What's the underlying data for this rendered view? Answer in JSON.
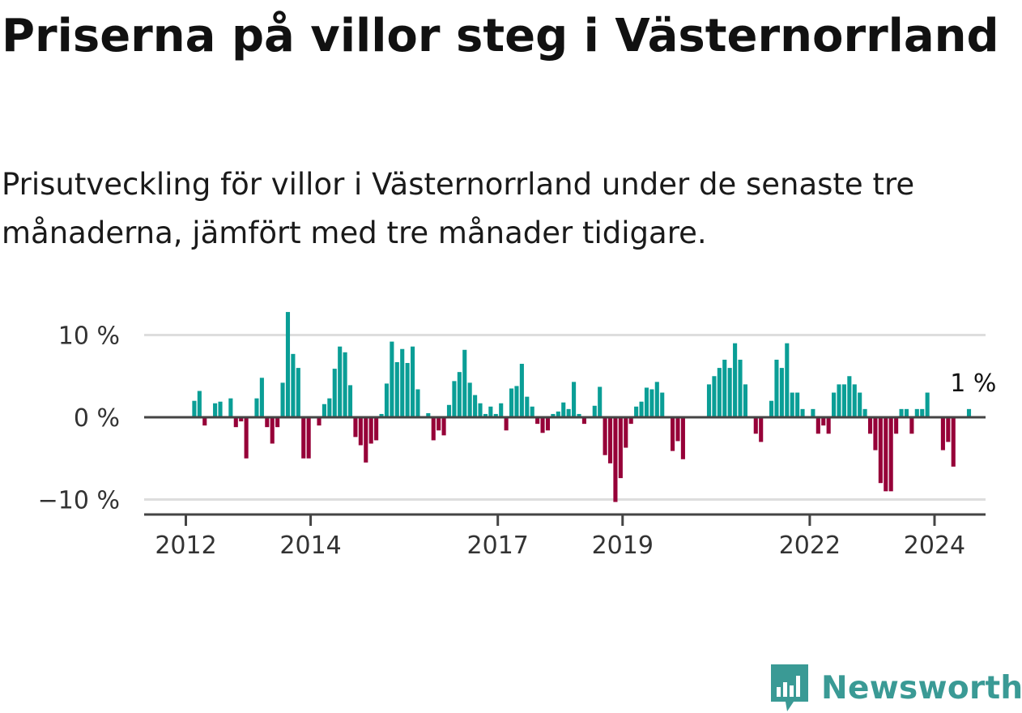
{
  "header": {
    "title": "Priserna på villor steg i Västernorrland",
    "subtitle": "Prisutveckling för villor i Västernorrland under de senaste tre månaderna, jämfört med tre månader tidigare."
  },
  "brand": {
    "name": "Newsworthy",
    "icon": "newsworthy-logo-icon",
    "color": "#3a9a95"
  },
  "chart_data": {
    "type": "bar",
    "title": "Priserna på villor steg i Västernorrland",
    "subtitle": "Prisutveckling för villor i Västernorrland under de senaste tre månaderna, jämfört med tre månader tidigare.",
    "xlabel": "",
    "ylabel": "",
    "ylim": [
      -11.5,
      13.5
    ],
    "y_ticks": [
      {
        "value": 10,
        "label": "10 %"
      },
      {
        "value": 0,
        "label": "0 %"
      },
      {
        "value": -10,
        "label": "−10 %"
      }
    ],
    "x_ticks": [
      {
        "value": "2012-01",
        "label": "2012"
      },
      {
        "value": "2014-01",
        "label": "2014"
      },
      {
        "value": "2017-01",
        "label": "2017"
      },
      {
        "value": "2019-01",
        "label": "2019"
      },
      {
        "value": "2022-01",
        "label": "2022"
      },
      {
        "value": "2024-01",
        "label": "2024"
      }
    ],
    "grid": true,
    "colors": {
      "positive": "#0a9e96",
      "negative": "#960038",
      "grid": "#dddddd",
      "zero_line": "#444444"
    },
    "annotation": {
      "x": "2024-03",
      "label": "1 %"
    },
    "start": "2012-01",
    "values": [
      0,
      2,
      3.2,
      -1,
      0,
      1.7,
      1.9,
      0,
      2.3,
      -1.2,
      -0.5,
      -5,
      0,
      2.3,
      4.8,
      -1.2,
      -3.2,
      -1.2,
      4.2,
      12.8,
      7.7,
      6,
      -5,
      -5,
      0,
      -1,
      1.6,
      2.3,
      5.9,
      8.6,
      7.9,
      3.9,
      -2.4,
      -3.4,
      -5.5,
      -3.2,
      -2.8,
      0.4,
      4.1,
      9.2,
      6.7,
      8.3,
      6.6,
      8.6,
      3.4,
      0,
      0.5,
      -2.8,
      -1.6,
      -2.2,
      1.5,
      4.4,
      5.5,
      8.2,
      4.2,
      2.7,
      1.7,
      0.4,
      1.3,
      0.4,
      1.7,
      -1.6,
      3.5,
      3.8,
      6.5,
      2.5,
      1.3,
      -0.8,
      -1.9,
      -1.6,
      0.4,
      0.7,
      1.8,
      1,
      4.3,
      0.4,
      -0.8,
      0,
      1.4,
      3.7,
      -4.6,
      -5.6,
      -10.3,
      -7.4,
      -3.7,
      -0.8,
      1.3,
      1.9,
      3.6,
      3.4,
      4.3,
      3,
      0,
      -4.1,
      -2.9,
      -5.1,
      0,
      0,
      0,
      0,
      4,
      5,
      6,
      7,
      6,
      9,
      7,
      4,
      0,
      -2,
      -3,
      0,
      2,
      7,
      6,
      9,
      3,
      3,
      1,
      0,
      1,
      -2,
      -1,
      -2,
      3,
      4,
      4,
      5,
      4,
      3,
      1,
      -2,
      -4,
      -8,
      -9,
      -9,
      -2,
      1,
      1,
      -2,
      1,
      1,
      3,
      0,
      0,
      -4,
      -3,
      -6,
      0,
      0,
      1
    ]
  }
}
